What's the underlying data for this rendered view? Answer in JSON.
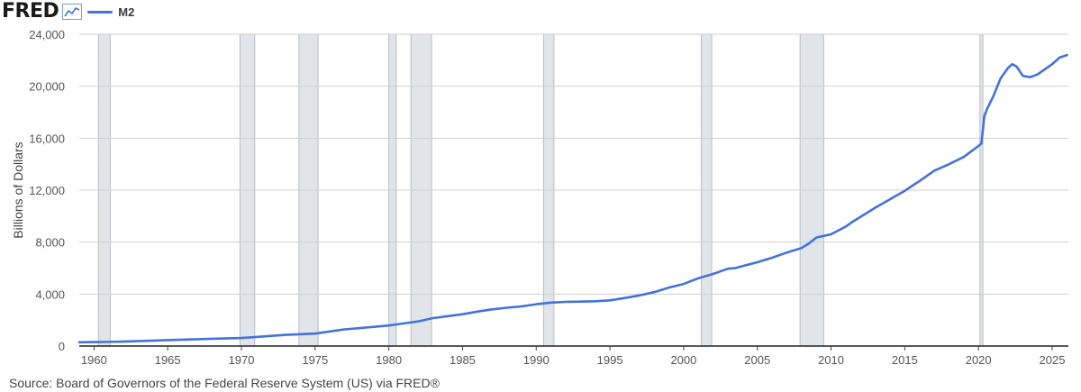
{
  "header": {
    "logo_text": "FRED",
    "legend_label": "M2",
    "series_color": "#4472db",
    "icon": "line-chart-icon"
  },
  "source_text": "Source: Board of Governors of the Federal Reserve System (US) via FRED®",
  "chart_data": {
    "type": "line",
    "title": "",
    "xlabel": "",
    "ylabel": "Billions of Dollars",
    "xlim": [
      1959.0,
      2026.1
    ],
    "ylim": [
      0,
      24000
    ],
    "y_ticks": [
      0,
      4000,
      8000,
      12000,
      16000,
      20000,
      24000
    ],
    "y_tick_labels": [
      "0",
      "4,000",
      "8,000",
      "12,000",
      "16,000",
      "20,000",
      "24,000"
    ],
    "x_ticks": [
      1960,
      1965,
      1970,
      1975,
      1980,
      1985,
      1990,
      1995,
      2000,
      2005,
      2010,
      2015,
      2020,
      2025
    ],
    "x_tick_labels": [
      "1960",
      "1965",
      "1970",
      "1975",
      "1980",
      "1985",
      "1990",
      "1995",
      "2000",
      "2005",
      "2010",
      "2015",
      "2020",
      "2025"
    ],
    "grid": true,
    "recessions": [
      [
        1960.3,
        1961.1
      ],
      [
        1969.9,
        1970.9
      ],
      [
        1973.9,
        1975.2
      ],
      [
        1980.0,
        1980.5
      ],
      [
        1981.5,
        1982.9
      ],
      [
        1990.5,
        1991.2
      ],
      [
        2001.2,
        2001.9
      ],
      [
        2007.9,
        2009.5
      ],
      [
        2020.1,
        2020.3
      ]
    ],
    "series": [
      {
        "name": "M2",
        "x": [
          1959.0,
          1960.0,
          1962.0,
          1965.0,
          1968.0,
          1970.0,
          1971.0,
          1973.0,
          1975.0,
          1977.0,
          1979.0,
          1980.0,
          1981.0,
          1982.0,
          1983.0,
          1984.0,
          1985.0,
          1986.0,
          1987.0,
          1988.0,
          1989.0,
          1990.0,
          1991.0,
          1992.0,
          1993.0,
          1994.0,
          1995.0,
          1996.0,
          1997.0,
          1998.0,
          1999.0,
          2000.0,
          2001.0,
          2002.0,
          2003.0,
          2003.5,
          2004.0,
          2005.0,
          2006.0,
          2007.0,
          2008.0,
          2008.5,
          2009.0,
          2010.0,
          2011.0,
          2011.5,
          2012.0,
          2013.0,
          2014.0,
          2015.0,
          2016.0,
          2017.0,
          2018.0,
          2019.0,
          2020.0,
          2020.2,
          2020.4,
          2020.6,
          2021.0,
          2021.5,
          2022.0,
          2022.3,
          2022.6,
          2023.0,
          2023.5,
          2024.0,
          2025.0,
          2025.5,
          2026.0
        ],
        "y": [
          290,
          305,
          340,
          460,
          560,
          620,
          700,
          860,
          960,
          1280,
          1480,
          1580,
          1740,
          1900,
          2150,
          2300,
          2450,
          2650,
          2820,
          2950,
          3050,
          3220,
          3340,
          3400,
          3420,
          3450,
          3520,
          3700,
          3900,
          4150,
          4500,
          4780,
          5220,
          5550,
          5950,
          6000,
          6150,
          6450,
          6800,
          7200,
          7550,
          7900,
          8350,
          8600,
          9200,
          9600,
          9950,
          10650,
          11300,
          11950,
          12700,
          13500,
          14000,
          14550,
          15400,
          15600,
          17700,
          18300,
          19200,
          20600,
          21400,
          21700,
          21500,
          20800,
          20700,
          20900,
          21700,
          22200,
          22400
        ]
      }
    ]
  }
}
